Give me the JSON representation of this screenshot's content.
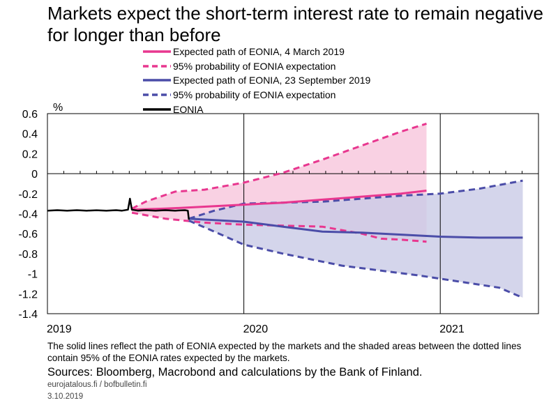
{
  "chart_data": {
    "type": "line",
    "title": "Markets expect the short-term interest rate to remain negative for longer than before",
    "ylabel": "%",
    "xlabel": "",
    "ylim": [
      -1.4,
      0.6
    ],
    "yticks": [
      "0.6",
      "0.4",
      "0.2",
      "0",
      "-0.2",
      "-0.4",
      "-0.6",
      "-0.8",
      "-1",
      "-1.2",
      "-1.4"
    ],
    "xlim": [
      2019.0,
      2021.5
    ],
    "xticks": [
      {
        "label": "2019",
        "value": 2019.0
      },
      {
        "label": "2020",
        "value": 2020.0
      },
      {
        "label": "2021",
        "value": 2021.0
      }
    ],
    "grid": "vertical lines at year boundaries",
    "legend_position": "top",
    "series": [
      {
        "name": "Expected path of EONIA, 4 March 2019",
        "style": "solid",
        "color": "#e8378f",
        "x": [
          2019.43,
          2019.6,
          2019.8,
          2020.0,
          2020.2,
          2020.4,
          2020.6,
          2020.8,
          2020.93
        ],
        "y": [
          -0.36,
          -0.35,
          -0.33,
          -0.31,
          -0.29,
          -0.26,
          -0.23,
          -0.2,
          -0.17
        ]
      },
      {
        "name": "95% probability of EONIA expectation",
        "group": "4 March 2019",
        "style": "dashed",
        "color": "#e8378f",
        "x": [
          2019.43,
          2019.5,
          2019.65,
          2019.8,
          2020.0,
          2020.2,
          2020.4,
          2020.6,
          2020.8,
          2020.93
        ],
        "y": [
          -0.35,
          -0.28,
          -0.18,
          -0.16,
          -0.09,
          0.01,
          0.14,
          0.28,
          0.42,
          0.5
        ]
      },
      {
        "name": "95% probability of EONIA expectation (lower)",
        "group": "4 March 2019",
        "style": "dashed",
        "color": "#e8378f",
        "x": [
          2019.43,
          2019.6,
          2019.8,
          2020.0,
          2020.2,
          2020.4,
          2020.6,
          2020.7,
          2020.8,
          2020.93
        ],
        "y": [
          -0.39,
          -0.45,
          -0.49,
          -0.51,
          -0.52,
          -0.53,
          -0.6,
          -0.65,
          -0.66,
          -0.68
        ]
      },
      {
        "name": "Expected path of EONIA, 23 September 2019",
        "style": "solid",
        "color": "#4b4da8",
        "x": [
          2019.72,
          2019.9,
          2020.0,
          2020.2,
          2020.4,
          2020.6,
          2020.8,
          2021.0,
          2021.2,
          2021.42
        ],
        "y": [
          -0.45,
          -0.47,
          -0.48,
          -0.53,
          -0.58,
          -0.59,
          -0.61,
          -0.63,
          -0.64,
          -0.64
        ]
      },
      {
        "name": "95% probability of EONIA expectation",
        "group": "23 September 2019",
        "style": "dashed",
        "color": "#4b4da8",
        "x": [
          2019.72,
          2019.85,
          2020.0,
          2020.2,
          2020.4,
          2020.6,
          2020.8,
          2021.0,
          2021.2,
          2021.42
        ],
        "y": [
          -0.45,
          -0.37,
          -0.3,
          -0.29,
          -0.28,
          -0.25,
          -0.22,
          -0.2,
          -0.15,
          -0.07
        ]
      },
      {
        "name": "95% probability of EONIA expectation (lower)",
        "group": "23 September 2019",
        "style": "dashed",
        "color": "#4b4da8",
        "x": [
          2019.72,
          2019.85,
          2020.0,
          2020.2,
          2020.5,
          2020.7,
          2020.9,
          2021.1,
          2021.3,
          2021.42
        ],
        "y": [
          -0.47,
          -0.58,
          -0.71,
          -0.8,
          -0.92,
          -0.97,
          -1.02,
          -1.08,
          -1.14,
          -1.24
        ]
      },
      {
        "name": "EONIA",
        "style": "solid",
        "color": "#000000",
        "x": [
          2019.0,
          2019.05,
          2019.1,
          2019.15,
          2019.2,
          2019.25,
          2019.3,
          2019.35,
          2019.38,
          2019.41,
          2019.42,
          2019.43,
          2019.46,
          2019.5,
          2019.55,
          2019.6,
          2019.65,
          2019.7,
          2019.715,
          2019.72
        ],
        "y": [
          -0.37,
          -0.365,
          -0.37,
          -0.365,
          -0.37,
          -0.366,
          -0.37,
          -0.365,
          -0.37,
          -0.36,
          -0.25,
          -0.36,
          -0.37,
          -0.365,
          -0.37,
          -0.365,
          -0.37,
          -0.365,
          -0.37,
          -0.46
        ]
      }
    ]
  },
  "legend": [
    {
      "label": "Expected path of EONIA, 4 March 2019",
      "color": "#e8378f",
      "style": "solid"
    },
    {
      "label": "95% probability of EONIA expectation",
      "color": "#e8378f",
      "style": "dashed"
    },
    {
      "label": "Expected path of EONIA, 23 September 2019",
      "color": "#4b4da8",
      "style": "solid"
    },
    {
      "label": "95% probability of EONIA expectation",
      "color": "#4b4da8",
      "style": "dashed"
    },
    {
      "label": "EONIA",
      "color": "#000000",
      "style": "solid"
    }
  ],
  "band_colors": {
    "march": "#f8c6dc",
    "september": "#c9cbe6"
  },
  "footnote": "The solid lines reflect the path of EONIA expected by the markets and the shaded areas between the dotted lines contain 95% of the EONIA rates expected by the markets.",
  "sources": "Sources: Bloomberg, Macrobond and calculations by the Bank of Finland.",
  "site": "eurojatalous.fi  / bofbulletin.fi",
  "date": "3.10.2019"
}
